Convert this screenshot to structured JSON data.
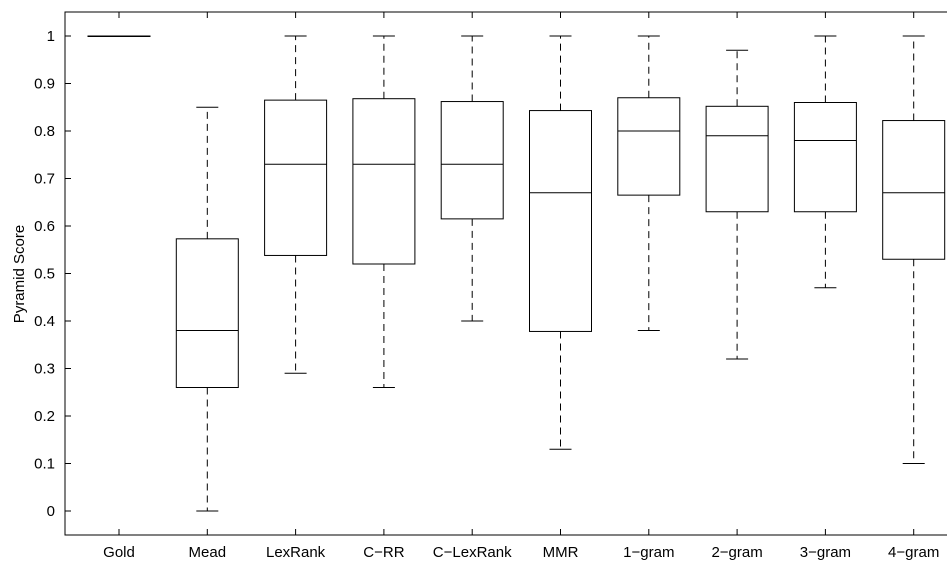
{
  "chart_data": {
    "type": "box",
    "title": "",
    "xlabel": "",
    "ylabel": "Pyramid Score",
    "ylim": [
      -0.05,
      1.05
    ],
    "yticks": [
      0,
      0.1,
      0.2,
      0.3,
      0.4,
      0.5,
      0.6,
      0.7,
      0.8,
      0.9,
      1
    ],
    "categories": [
      "Gold",
      "Mead",
      "LexRank",
      "C−RR",
      "C−LexRank",
      "MMR",
      "1−gram",
      "2−gram",
      "3−gram",
      "4−gram"
    ],
    "boxes": [
      {
        "min": 1.0,
        "q1": 1.0,
        "median": 1.0,
        "q3": 1.0,
        "max": 1.0
      },
      {
        "min": 0.0,
        "q1": 0.26,
        "median": 0.38,
        "q3": 0.573,
        "max": 0.85
      },
      {
        "min": 0.29,
        "q1": 0.538,
        "median": 0.73,
        "q3": 0.865,
        "max": 1.0
      },
      {
        "min": 0.26,
        "q1": 0.52,
        "median": 0.73,
        "q3": 0.868,
        "max": 1.0
      },
      {
        "min": 0.4,
        "q1": 0.615,
        "median": 0.73,
        "q3": 0.862,
        "max": 1.0
      },
      {
        "min": 0.13,
        "q1": 0.378,
        "median": 0.67,
        "q3": 0.843,
        "max": 1.0
      },
      {
        "min": 0.38,
        "q1": 0.665,
        "median": 0.8,
        "q3": 0.87,
        "max": 1.0
      },
      {
        "min": 0.32,
        "q1": 0.63,
        "median": 0.79,
        "q3": 0.852,
        "max": 0.97
      },
      {
        "min": 0.47,
        "q1": 0.63,
        "median": 0.78,
        "q3": 0.86,
        "max": 1.0
      },
      {
        "min": 0.1,
        "q1": 0.53,
        "median": 0.67,
        "q3": 0.822,
        "max": 1.0
      }
    ]
  }
}
